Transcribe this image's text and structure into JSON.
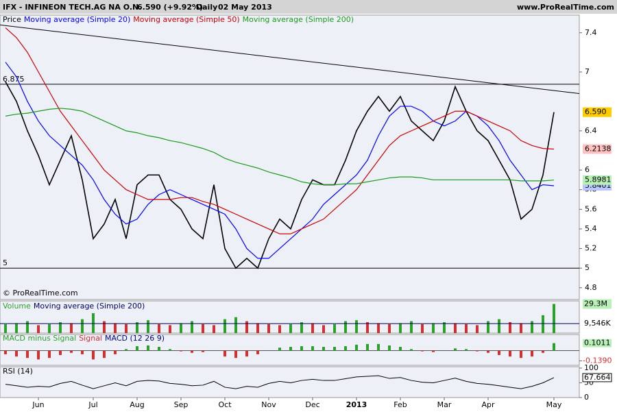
{
  "header": {
    "symbol": "IFX - INFINEON TECH.AG NA O.N.",
    "quote": "6.590 (+9.92%)",
    "period": "Daily",
    "date": "02 May 2013",
    "site": "www.ProRealTime.com"
  },
  "chart_data": {
    "type": "line",
    "copyright": "© ProRealTime.com",
    "categories": [
      null,
      null,
      null,
      "Jun",
      null,
      null,
      null,
      null,
      "Jul",
      null,
      null,
      null,
      "Aug",
      null,
      null,
      null,
      "Sep",
      null,
      null,
      null,
      "Oct",
      null,
      null,
      null,
      "Nov",
      null,
      null,
      null,
      "Dec",
      null,
      null,
      null,
      "2013",
      null,
      null,
      null,
      "Feb",
      null,
      null,
      null,
      "Mar",
      null,
      null,
      null,
      "Apr",
      null,
      null,
      null,
      null,
      null,
      "May"
    ],
    "ylim": [
      4.68,
      7.58
    ],
    "yticks": [
      4.8,
      5,
      5.2,
      5.4,
      5.6,
      5.8,
      6,
      6.4,
      7,
      7.4
    ],
    "series": [
      {
        "name": "Price",
        "color": "#000000",
        "last_label": "6.590",
        "label_color": "#ffcc00",
        "values": [
          6.9,
          6.7,
          6.4,
          6.15,
          5.85,
          6.1,
          6.35,
          5.9,
          5.3,
          5.45,
          5.7,
          5.3,
          5.85,
          5.95,
          5.95,
          5.7,
          5.6,
          5.4,
          5.3,
          5.85,
          5.2,
          5.0,
          5.1,
          5.0,
          5.3,
          5.5,
          5.4,
          5.7,
          5.9,
          5.85,
          5.85,
          6.1,
          6.4,
          6.6,
          6.75,
          6.6,
          6.75,
          6.5,
          6.4,
          6.3,
          6.5,
          6.85,
          6.6,
          6.4,
          6.3,
          6.1,
          5.9,
          5.5,
          5.6,
          5.95,
          6.59
        ]
      },
      {
        "name": "Moving average (Simple 20)",
        "color": "#0000ff",
        "last_label": "5.8401",
        "label_color": "#b8c8ff",
        "values": [
          7.1,
          6.95,
          6.7,
          6.5,
          6.35,
          6.25,
          6.15,
          6.05,
          5.9,
          5.7,
          5.55,
          5.45,
          5.5,
          5.65,
          5.75,
          5.8,
          5.75,
          5.7,
          5.65,
          5.6,
          5.55,
          5.4,
          5.2,
          5.1,
          5.1,
          5.2,
          5.3,
          5.4,
          5.5,
          5.65,
          5.75,
          5.85,
          5.95,
          6.1,
          6.35,
          6.55,
          6.65,
          6.65,
          6.6,
          6.5,
          6.45,
          6.5,
          6.6,
          6.55,
          6.45,
          6.3,
          6.1,
          5.95,
          5.8,
          5.85,
          5.8401
        ]
      },
      {
        "name": "Moving average (Simple 50)",
        "color": "#cc0000",
        "last_label": "6.2138",
        "label_color": "#ffc0c0",
        "values": [
          7.45,
          7.35,
          7.2,
          7.0,
          6.8,
          6.6,
          6.45,
          6.3,
          6.15,
          6.0,
          5.9,
          5.8,
          5.75,
          5.7,
          5.7,
          5.7,
          5.72,
          5.72,
          5.68,
          5.65,
          5.6,
          5.55,
          5.5,
          5.45,
          5.4,
          5.35,
          5.35,
          5.4,
          5.45,
          5.5,
          5.6,
          5.7,
          5.8,
          5.95,
          6.1,
          6.25,
          6.35,
          6.4,
          6.45,
          6.5,
          6.55,
          6.6,
          6.6,
          6.55,
          6.5,
          6.45,
          6.4,
          6.3,
          6.25,
          6.22,
          6.2138
        ]
      },
      {
        "name": "Moving average (Simple 200)",
        "color": "#1a9a1a",
        "last_label": "5.8981",
        "label_color": "#b8f0b8",
        "values": [
          6.55,
          6.57,
          6.58,
          6.6,
          6.62,
          6.63,
          6.62,
          6.6,
          6.55,
          6.5,
          6.45,
          6.4,
          6.38,
          6.35,
          6.33,
          6.3,
          6.28,
          6.25,
          6.22,
          6.18,
          6.12,
          6.08,
          6.05,
          6.02,
          5.98,
          5.95,
          5.92,
          5.88,
          5.86,
          5.85,
          5.85,
          5.86,
          5.86,
          5.88,
          5.9,
          5.92,
          5.93,
          5.93,
          5.92,
          5.9,
          5.9,
          5.9,
          5.9,
          5.9,
          5.9,
          5.9,
          5.9,
          5.89,
          5.89,
          5.89,
          5.8981
        ]
      }
    ],
    "hlines": [
      6.875,
      5
    ],
    "trendline": [
      7.48,
      6.78
    ],
    "volume": {
      "title": "Volume",
      "ma_name": "Moving average (Simple 200)",
      "ylim": [
        0,
        31
      ],
      "ma_value": 9.546,
      "ma_label": "9,546K",
      "last_label": "29.3M",
      "values": [
        9,
        10,
        12,
        8,
        9,
        11,
        10,
        14,
        20,
        12,
        10,
        9,
        11,
        13,
        9,
        8,
        10,
        12,
        9,
        8,
        14,
        16,
        12,
        10,
        9,
        8,
        9,
        11,
        10,
        8,
        9,
        12,
        13,
        11,
        10,
        9,
        10,
        12,
        9,
        10,
        11,
        10,
        9,
        8,
        12,
        14,
        11,
        10,
        12,
        18,
        29.3
      ]
    },
    "macd": {
      "title": "MACD minus Signal",
      "signal_name": "Signal",
      "macd_name": "MACD (12 26 9)",
      "ylim": [
        -0.2,
        0.2
      ],
      "last_label": "0.1011",
      "low_value": -0.139,
      "low_label": "-0.1390",
      "values": [
        -0.05,
        -0.08,
        -0.1,
        -0.12,
        -0.1,
        -0.06,
        -0.03,
        -0.05,
        -0.12,
        -0.1,
        -0.05,
        0.02,
        0.06,
        0.07,
        0.05,
        0.02,
        -0.01,
        -0.03,
        -0.02,
        0.0,
        -0.08,
        -0.1,
        -0.08,
        -0.05,
        0.0,
        0.04,
        0.05,
        0.06,
        0.06,
        0.05,
        0.05,
        0.06,
        0.08,
        0.09,
        0.09,
        0.07,
        0.05,
        0.02,
        -0.01,
        -0.02,
        0.0,
        0.03,
        0.02,
        -0.01,
        -0.03,
        -0.06,
        -0.08,
        -0.1,
        -0.08,
        -0.03,
        0.1011
      ]
    },
    "rsi": {
      "title": "RSI (14)",
      "ylim": [
        0,
        100
      ],
      "yticks": [
        0,
        50,
        100
      ],
      "values": [
        45,
        40,
        35,
        38,
        36,
        48,
        55,
        42,
        30,
        40,
        50,
        40,
        55,
        58,
        56,
        48,
        45,
        40,
        42,
        55,
        35,
        30,
        38,
        35,
        48,
        55,
        50,
        58,
        62,
        58,
        58,
        64,
        70,
        72,
        74,
        65,
        68,
        58,
        52,
        50,
        58,
        66,
        55,
        48,
        45,
        40,
        35,
        30,
        38,
        50,
        67.664
      ]
    }
  }
}
